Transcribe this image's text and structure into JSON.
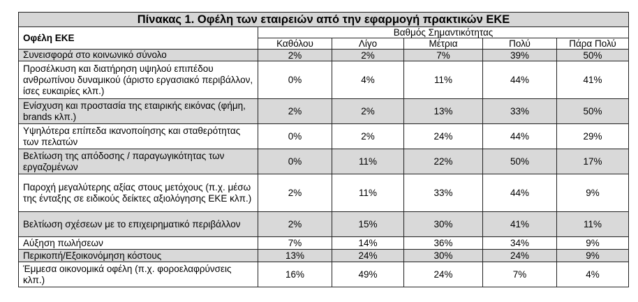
{
  "title": "Πίνακας 1. Οφέλη των εταιρειών από την εφαρμογή πρακτικών ΕΚΕ",
  "header": {
    "row_label": "Οφέλη ΕΚΕ",
    "group_label": "Βαθμός Σημαντικότητας",
    "columns": [
      "Καθόλου",
      "Λίγο",
      "Μέτρια",
      "Πολύ",
      "Πάρα Πολύ"
    ]
  },
  "rows": [
    {
      "label": "Συνεισφορά στο κοινωνικό σύνολο",
      "values": [
        "2%",
        "2%",
        "7%",
        "39%",
        "50%"
      ]
    },
    {
      "label": "Προσέλκυση και διατήρηση υψηλού επιπέδου ανθρωπίνου δυναμικού (άριστο εργασιακό περιβάλλον, ίσες ευκαιρίες κλπ.)",
      "values": [
        "0%",
        "4%",
        "11%",
        "44%",
        "41%"
      ]
    },
    {
      "label": "Ενίσχυση και προστασία της εταιρικής εικόνας (φήμη, brands κλπ.)",
      "values": [
        "2%",
        "2%",
        "13%",
        "33%",
        "50%"
      ]
    },
    {
      "label": "Υψηλότερα επίπεδα ικανοποίησης και σταθερότητας των πελατών",
      "values": [
        "0%",
        "2%",
        "24%",
        "44%",
        "29%"
      ]
    },
    {
      "label": "Βελτίωση της απόδοσης / παραγωγικότητας των εργαζομένων",
      "values": [
        "0%",
        "11%",
        "22%",
        "50%",
        "17%"
      ]
    },
    {
      "label": "Παροχή μεγαλύτερης αξίας στους μετόχους (π.χ. μέσω της ένταξης σε ειδικούς δείκτες αξιολόγησης ΕΚΕ κλπ.)",
      "values": [
        "2%",
        "11%",
        "33%",
        "44%",
        "9%"
      ]
    },
    {
      "label": "Βελτίωση σχέσεων με το επιχειρηματικό περιβάλλον",
      "values": [
        "2%",
        "15%",
        "30%",
        "41%",
        "11%"
      ]
    },
    {
      "label": "Αύξηση πωλήσεων",
      "values": [
        "7%",
        "14%",
        "36%",
        "34%",
        "9%"
      ]
    },
    {
      "label": "Περικοπή/Εξοικονόμηση κόστους",
      "values": [
        "13%",
        "24%",
        "30%",
        "24%",
        "9%"
      ]
    },
    {
      "label": "Έμμεσα οικονομικά οφέλη (π.χ. φοροελαφρύνσεις κλπ.)",
      "values": [
        "16%",
        "49%",
        "24%",
        "7%",
        "4%"
      ]
    }
  ]
}
